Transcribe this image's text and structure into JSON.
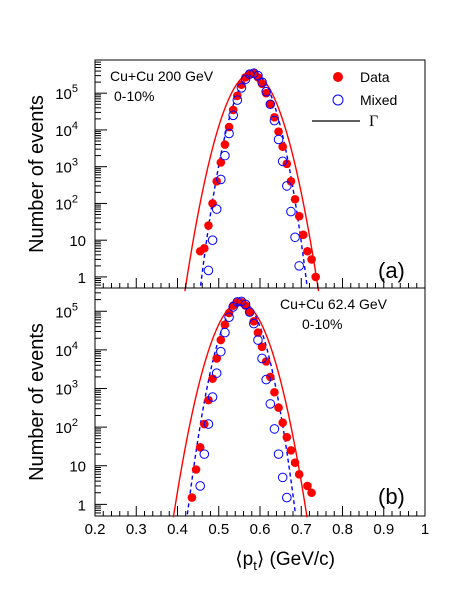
{
  "chart_data": [
    {
      "type": "scatter",
      "panel_label": "(a)",
      "annotation_lines": [
        "Cu+Cu 200 GeV",
        "0-10%"
      ],
      "ylabel": "Number of events",
      "y_scale": "log",
      "ylim": [
        0.5,
        800000
      ],
      "y_ticks": [
        {
          "value": 1,
          "label": "1"
        },
        {
          "value": 10,
          "label": "10"
        },
        {
          "value": 100,
          "label": "10",
          "exp": "2"
        },
        {
          "value": 1000,
          "label": "10",
          "exp": "3"
        },
        {
          "value": 10000,
          "label": "10",
          "exp": "4"
        },
        {
          "value": 100000,
          "label": "10",
          "exp": "5"
        }
      ],
      "legend": {
        "placement": "top-right",
        "entries": [
          {
            "key": "data",
            "label": "Data"
          },
          {
            "key": "mixed",
            "label": "Mixed"
          },
          {
            "key": "gamma",
            "label": "Γ"
          }
        ]
      },
      "series": [
        {
          "key": "data",
          "name": "Data",
          "marker": "filled-circle",
          "color": "#ff0000",
          "points": [
            [
              0.455,
              5
            ],
            [
              0.465,
              6
            ],
            [
              0.475,
              25
            ],
            [
              0.485,
              100
            ],
            [
              0.495,
              400
            ],
            [
              0.505,
              1300
            ],
            [
              0.515,
              4000
            ],
            [
              0.525,
              12000
            ],
            [
              0.535,
              35000
            ],
            [
              0.545,
              85000
            ],
            [
              0.555,
              170000
            ],
            [
              0.565,
              270000
            ],
            [
              0.575,
              340000
            ],
            [
              0.585,
              340000
            ],
            [
              0.595,
              270000
            ],
            [
              0.605,
              180000
            ],
            [
              0.615,
              100000
            ],
            [
              0.625,
              50000
            ],
            [
              0.635,
              22000
            ],
            [
              0.645,
              9000
            ],
            [
              0.655,
              3500
            ],
            [
              0.665,
              1200
            ],
            [
              0.675,
              400
            ],
            [
              0.685,
              130
            ],
            [
              0.695,
              45
            ],
            [
              0.705,
              14
            ],
            [
              0.715,
              5
            ],
            [
              0.725,
              3
            ],
            [
              0.735,
              1
            ]
          ]
        },
        {
          "key": "mixed",
          "name": "Mixed",
          "marker": "open-circle",
          "color": "#0000ff",
          "points": [
            [
              0.475,
              1.5
            ],
            [
              0.485,
              10
            ],
            [
              0.495,
              70
            ],
            [
              0.505,
              450
            ],
            [
              0.515,
              2000
            ],
            [
              0.525,
              8000
            ],
            [
              0.535,
              25000
            ],
            [
              0.545,
              65000
            ],
            [
              0.555,
              140000
            ],
            [
              0.565,
              240000
            ],
            [
              0.575,
              330000
            ],
            [
              0.585,
              350000
            ],
            [
              0.595,
              300000
            ],
            [
              0.605,
              200000
            ],
            [
              0.615,
              110000
            ],
            [
              0.625,
              50000
            ],
            [
              0.635,
              18000
            ],
            [
              0.645,
              5500
            ],
            [
              0.655,
              1400
            ],
            [
              0.665,
              300
            ],
            [
              0.675,
              60
            ],
            [
              0.685,
              12
            ],
            [
              0.695,
              2
            ]
          ]
        },
        {
          "key": "gamma",
          "name": "Γ",
          "line": "solid",
          "color": "#ff0000",
          "mean": 0.58,
          "sigma": 0.031,
          "amp": 350000
        },
        {
          "key": "mixed_fit",
          "line": "dashed",
          "color": "#0000ff",
          "mean": 0.585,
          "sigma": 0.025,
          "amp": 350000
        }
      ]
    },
    {
      "type": "scatter",
      "panel_label": "(b)",
      "annotation_lines": [
        "Cu+Cu 62.4 GeV",
        "0-10%"
      ],
      "ylabel": "Number of events",
      "xlabel": "⟨p",
      "xlabel_sub": "t",
      "xlabel_tail": "⟩ (GeV/c)",
      "y_scale": "log",
      "ylim": [
        0.5,
        400000
      ],
      "xlim": [
        0.2,
        1.0
      ],
      "x_ticks": [
        {
          "value": 0.2,
          "label": "0.2"
        },
        {
          "value": 0.3,
          "label": "0.3"
        },
        {
          "value": 0.4,
          "label": "0.4"
        },
        {
          "value": 0.5,
          "label": "0.5"
        },
        {
          "value": 0.6,
          "label": "0.6"
        },
        {
          "value": 0.7,
          "label": "0.7"
        },
        {
          "value": 0.8,
          "label": "0.8"
        },
        {
          "value": 0.9,
          "label": "0.9"
        },
        {
          "value": 1.0,
          "label": "1"
        }
      ],
      "y_ticks": [
        {
          "value": 1,
          "label": "1"
        },
        {
          "value": 10,
          "label": "10"
        },
        {
          "value": 100,
          "label": "10",
          "exp": "2"
        },
        {
          "value": 1000,
          "label": "10",
          "exp": "3"
        },
        {
          "value": 10000,
          "label": "10",
          "exp": "4"
        },
        {
          "value": 100000,
          "label": "10",
          "exp": "5"
        }
      ],
      "series": [
        {
          "key": "data",
          "name": "Data",
          "marker": "filled-circle",
          "color": "#ff0000",
          "points": [
            [
              0.435,
              1.5
            ],
            [
              0.445,
              8
            ],
            [
              0.455,
              30
            ],
            [
              0.465,
              120
            ],
            [
              0.475,
              500
            ],
            [
              0.485,
              1800
            ],
            [
              0.495,
              6000
            ],
            [
              0.505,
              18000
            ],
            [
              0.515,
              45000
            ],
            [
              0.525,
              90000
            ],
            [
              0.535,
              140000
            ],
            [
              0.545,
              170000
            ],
            [
              0.555,
              170000
            ],
            [
              0.565,
              140000
            ],
            [
              0.575,
              95000
            ],
            [
              0.585,
              55000
            ],
            [
              0.595,
              28000
            ],
            [
              0.605,
              12000
            ],
            [
              0.615,
              5000
            ],
            [
              0.625,
              2000
            ],
            [
              0.635,
              800
            ],
            [
              0.645,
              320
            ],
            [
              0.655,
              130
            ],
            [
              0.665,
              55
            ],
            [
              0.675,
              25
            ],
            [
              0.685,
              12
            ],
            [
              0.695,
              6
            ],
            [
              0.715,
              3
            ],
            [
              0.725,
              2
            ]
          ]
        },
        {
          "key": "mixed",
          "name": "Mixed",
          "marker": "open-circle",
          "color": "#0000ff",
          "points": [
            [
              0.455,
              3
            ],
            [
              0.465,
              20
            ],
            [
              0.475,
              120
            ],
            [
              0.485,
              600
            ],
            [
              0.495,
              2500
            ],
            [
              0.505,
              9000
            ],
            [
              0.515,
              28000
            ],
            [
              0.525,
              70000
            ],
            [
              0.535,
              130000
            ],
            [
              0.545,
              175000
            ],
            [
              0.555,
              180000
            ],
            [
              0.565,
              150000
            ],
            [
              0.575,
              95000
            ],
            [
              0.585,
              48000
            ],
            [
              0.595,
              18000
            ],
            [
              0.605,
              6000
            ],
            [
              0.615,
              1700
            ],
            [
              0.625,
              400
            ],
            [
              0.635,
              90
            ],
            [
              0.645,
              20
            ],
            [
              0.655,
              5
            ],
            [
              0.665,
              1.5
            ]
          ]
        },
        {
          "key": "gamma",
          "name": "Γ",
          "line": "solid",
          "color": "#ff0000",
          "mean": 0.552,
          "sigma": 0.032,
          "amp": 170000
        },
        {
          "key": "mixed_fit",
          "line": "dashed",
          "color": "#0000ff",
          "mean": 0.555,
          "sigma": 0.026,
          "amp": 180000
        }
      ]
    }
  ]
}
